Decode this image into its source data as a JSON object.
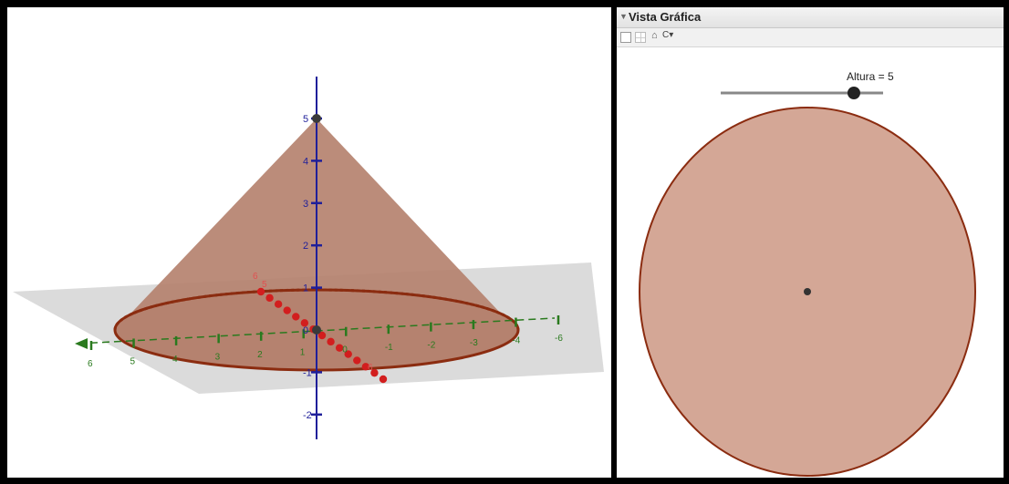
{
  "graphics3d": {
    "z_ticks": [
      "5",
      "4",
      "3",
      "2",
      "1",
      "0",
      "-1",
      "-2"
    ],
    "x_ticks": [
      "6",
      "5",
      "4",
      "3",
      "2",
      "1",
      "0",
      "-1",
      "-2",
      "-3",
      "-4",
      "-6"
    ],
    "y_ticks": [
      "6",
      "5",
      "6"
    ],
    "colors": {
      "cone": "#b5826f",
      "base_edge": "#8b2c10",
      "z_axis": "#1f1f9a",
      "x_axis": "#2a7a1e",
      "y_axis": "#d21e1e",
      "plane": "#c8c8c8"
    }
  },
  "graphics2d": {
    "panel_title": "Vista Gráfica",
    "toolbar": {
      "more_symbol": "C▾",
      "home_symbol": "⌂"
    },
    "slider": {
      "label": "Altura = 5",
      "value": 5,
      "position_fraction": 0.82
    },
    "circle": {
      "fill": "#d4a796",
      "stroke": "#8b2c10"
    }
  }
}
